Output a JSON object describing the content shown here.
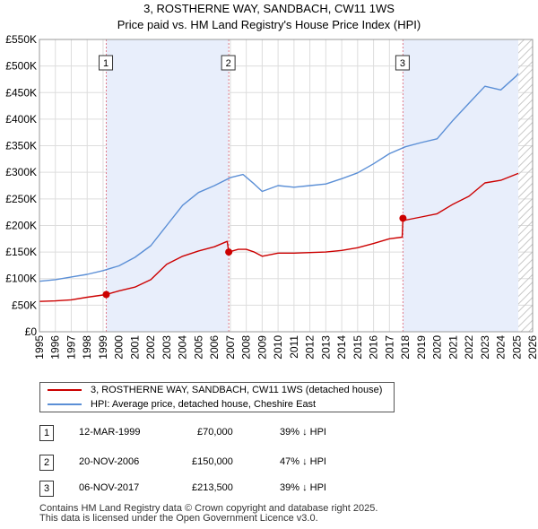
{
  "title_line1": "3, ROSTHERNE WAY, SANDBACH, CW11 1WS",
  "title_line2": "Price paid vs. HM Land Registry's House Price Index (HPI)",
  "legend": {
    "property": "3, ROSTHERNE WAY, SANDBACH, CW11 1WS (detached house)",
    "hpi": "HPI: Average price, detached house, Cheshire East"
  },
  "sales": [
    {
      "num": "1",
      "date": "12-MAR-1999",
      "price": "£70,000",
      "delta": "39% ↓ HPI"
    },
    {
      "num": "2",
      "date": "20-NOV-2006",
      "price": "£150,000",
      "delta": "47% ↓ HPI"
    },
    {
      "num": "3",
      "date": "06-NOV-2017",
      "price": "£213,500",
      "delta": "39% ↓ HPI"
    }
  ],
  "footer_line1": "Contains HM Land Registry data © Crown copyright and database right 2025.",
  "footer_line2": "This data is licensed under the Open Government Licence v3.0.",
  "colors": {
    "property": "#cc0000",
    "hpi": "#5b8fd6",
    "shade": "#e8eefb",
    "grid": "#dddddd"
  },
  "chart_data": {
    "type": "line",
    "title": "3, ROSTHERNE WAY, SANDBACH, CW11 1WS — Price paid vs. HM Land Registry's House Price Index (HPI)",
    "xlim": [
      1995,
      2026
    ],
    "ylim": [
      0,
      550000
    ],
    "x_ticks": [
      1995,
      1996,
      1997,
      1998,
      1999,
      2000,
      2001,
      2002,
      2003,
      2004,
      2005,
      2006,
      2007,
      2008,
      2009,
      2010,
      2011,
      2012,
      2013,
      2014,
      2015,
      2016,
      2017,
      2018,
      2019,
      2020,
      2021,
      2022,
      2023,
      2024,
      2025,
      2026
    ],
    "y_ticks": [
      0,
      50000,
      100000,
      150000,
      200000,
      250000,
      300000,
      350000,
      400000,
      450000,
      500000,
      550000
    ],
    "y_tick_labels": [
      "£0",
      "£50K",
      "£100K",
      "£150K",
      "£200K",
      "£250K",
      "£300K",
      "£350K",
      "£400K",
      "£450K",
      "£500K",
      "£550K"
    ],
    "shaded_periods": [
      [
        1999.2,
        2006.9
      ],
      [
        2017.85,
        2025.1
      ]
    ],
    "hatched_from": 2025.1,
    "markers": [
      {
        "label": "1",
        "x": 1999.2,
        "y": 70000
      },
      {
        "label": "2",
        "x": 2006.9,
        "y": 150000
      },
      {
        "label": "3",
        "x": 2017.85,
        "y": 213500
      }
    ],
    "series": [
      {
        "name": "3, ROSTHERNE WAY, SANDBACH, CW11 1WS (detached house)",
        "x": [
          1995,
          1996,
          1997,
          1998,
          1999.2,
          2000,
          2001,
          2002,
          2003,
          2004,
          2005,
          2006,
          2006.8,
          2006.9,
          2007.5,
          2008,
          2008.5,
          2009,
          2010,
          2011,
          2012,
          2013,
          2014,
          2015,
          2016,
          2017,
          2017.8,
          2017.85,
          2018,
          2019,
          2020,
          2021,
          2022,
          2023,
          2024,
          2025.1
        ],
        "values": [
          57000,
          58000,
          60000,
          65000,
          70000,
          77000,
          84000,
          98000,
          127000,
          142000,
          152000,
          160000,
          170000,
          150000,
          155000,
          155000,
          150000,
          142000,
          148000,
          148000,
          149000,
          150000,
          153000,
          158000,
          166000,
          175000,
          178000,
          213500,
          210000,
          216000,
          222000,
          240000,
          255000,
          280000,
          285000,
          298000
        ]
      },
      {
        "name": "HPI: Average price, detached house, Cheshire East",
        "x": [
          1995,
          1996,
          1997,
          1998,
          1999,
          2000,
          2001,
          2002,
          2003,
          2004,
          2005,
          2006,
          2007,
          2007.8,
          2008.5,
          2009,
          2010,
          2011,
          2012,
          2013,
          2014,
          2015,
          2016,
          2017,
          2018,
          2019,
          2020,
          2021,
          2022,
          2023,
          2024,
          2025,
          2025.1
        ],
        "values": [
          95000,
          98000,
          103000,
          108000,
          115000,
          124000,
          140000,
          162000,
          200000,
          238000,
          262000,
          275000,
          290000,
          296000,
          278000,
          264000,
          275000,
          272000,
          275000,
          278000,
          288000,
          299000,
          316000,
          335000,
          348000,
          356000,
          363000,
          398000,
          430000,
          462000,
          455000,
          482000,
          486000
        ]
      }
    ]
  }
}
